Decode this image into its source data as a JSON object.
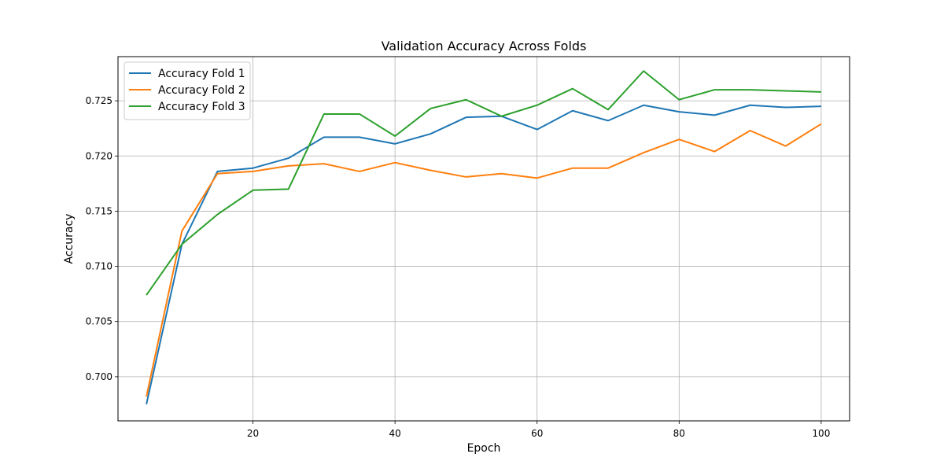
{
  "chart_data": {
    "type": "line",
    "title": "Validation Accuracy Across Folds",
    "xlabel": "Epoch",
    "ylabel": "Accuracy",
    "xlim": [
      1,
      104
    ],
    "ylim": [
      0.696,
      0.729
    ],
    "xticks": [
      20,
      40,
      60,
      80,
      100
    ],
    "yticks": [
      0.7,
      0.705,
      0.71,
      0.715,
      0.72,
      0.725
    ],
    "ytick_labels": [
      "0.700",
      "0.705",
      "0.710",
      "0.715",
      "0.720",
      "0.725"
    ],
    "grid": true,
    "legend_position": "top-left",
    "x": [
      5,
      10,
      15,
      20,
      25,
      30,
      35,
      40,
      45,
      50,
      55,
      60,
      65,
      70,
      75,
      80,
      85,
      90,
      95,
      100
    ],
    "series": [
      {
        "name": "Accuracy Fold 1",
        "color": "#1f77b4",
        "values": [
          0.6975,
          0.712,
          0.7186,
          0.7189,
          0.7198,
          0.7217,
          0.7217,
          0.7211,
          0.722,
          0.7235,
          0.7236,
          0.7224,
          0.7241,
          0.7232,
          0.7246,
          0.724,
          0.7237,
          0.7246,
          0.7244,
          0.7245
        ]
      },
      {
        "name": "Accuracy Fold 2",
        "color": "#ff7f0e",
        "values": [
          0.6982,
          0.7132,
          0.7184,
          0.7186,
          0.7191,
          0.7193,
          0.7186,
          0.7194,
          0.7187,
          0.7181,
          0.7184,
          0.718,
          0.7189,
          0.7189,
          0.7203,
          0.7215,
          0.7204,
          0.7223,
          0.7209,
          0.7229
        ]
      },
      {
        "name": "Accuracy Fold 3",
        "color": "#2ca02c",
        "values": [
          0.7074,
          0.712,
          0.7147,
          0.7169,
          0.717,
          0.7238,
          0.7238,
          0.7218,
          0.7243,
          0.7251,
          0.7236,
          0.7246,
          0.7261,
          0.7242,
          0.7277,
          0.7251,
          0.726,
          0.726,
          0.7259,
          0.7258
        ]
      }
    ]
  }
}
